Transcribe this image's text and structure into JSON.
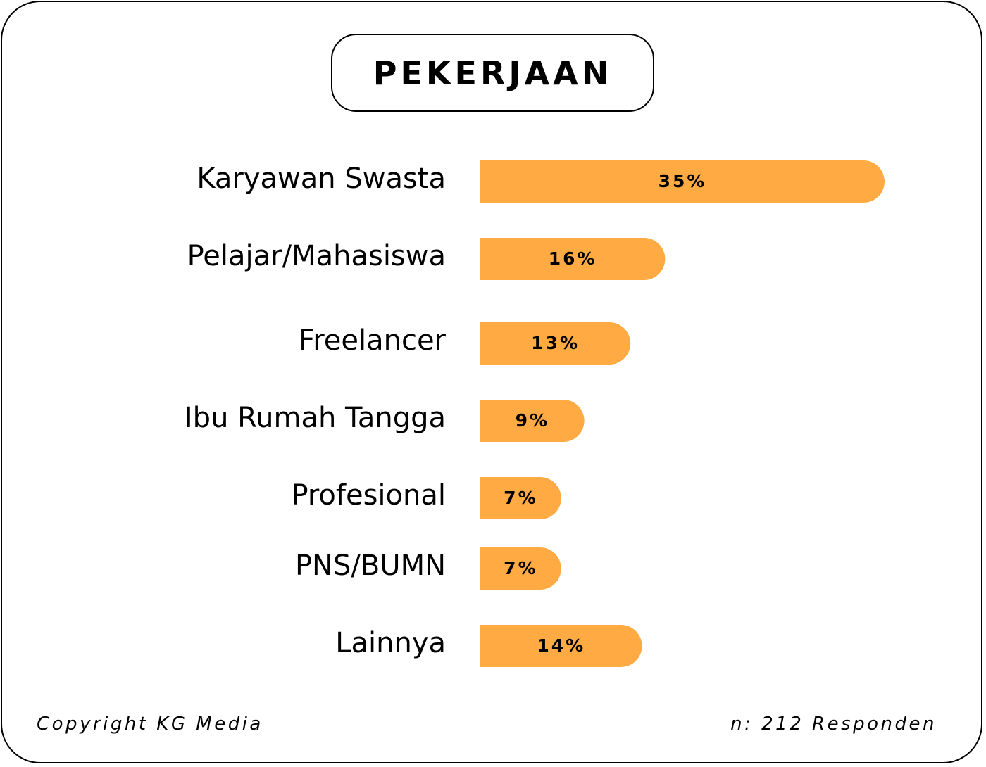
{
  "chart_data": {
    "type": "bar",
    "orientation": "horizontal",
    "title": "PEKERJAAN",
    "categories": [
      "Karyawan Swasta",
      "Pelajar/Mahasiswa",
      "Freelancer",
      "Ibu Rumah Tangga",
      "Profesional",
      "PNS/BUMN",
      "Lainnya"
    ],
    "values": [
      35,
      16,
      13,
      9,
      7,
      7,
      14
    ],
    "value_labels": [
      "35%",
      "16%",
      "13%",
      "9%",
      "7%",
      "7%",
      "14%"
    ],
    "unit": "%",
    "bar_color": "#FFAA42",
    "xlabel": "",
    "ylabel": "",
    "grid": false,
    "legend": "none"
  },
  "footer": {
    "copyright": "Copyright KG Media",
    "sample": "n: 212 Responden"
  }
}
